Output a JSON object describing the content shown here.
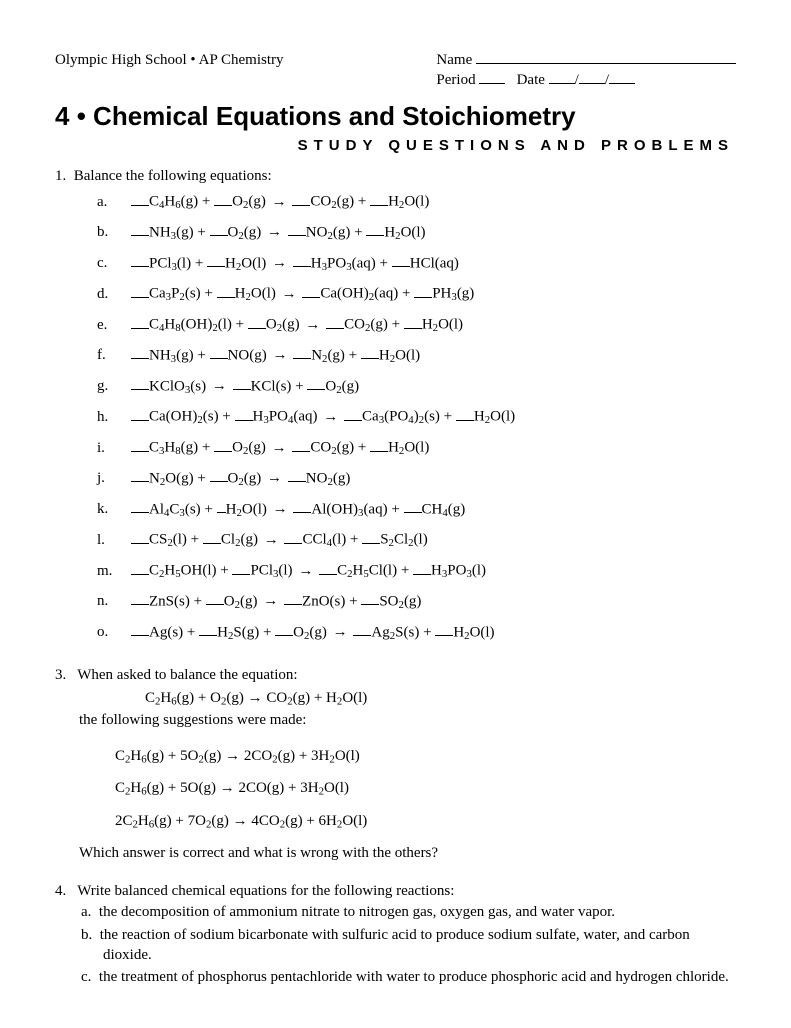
{
  "header": {
    "school": "Olympic High School",
    "bullet": "•",
    "course": "AP Chemistry",
    "name_label": "Name",
    "period_label": "Period",
    "date_label": "Date"
  },
  "title_num": "4",
  "title_bullet": "•",
  "title_text": "Chemical Equations and Stoichiometry",
  "subtitle": "STUDY QUESTIONS AND PROBLEMS",
  "q1": {
    "num": "1.",
    "text": "Balance the following equations:",
    "items": [
      {
        "lbl": "a.",
        "r": [
          [
            "C",
            "4"
          ],
          [
            "H",
            "6"
          ],
          [
            "(g)"
          ]
        ],
        "p": "+",
        "r2": [
          [
            "O",
            "2"
          ],
          [
            "(g)"
          ]
        ],
        "ar": "→",
        "r3": [
          [
            "CO",
            "2"
          ],
          [
            "(g)"
          ]
        ],
        "p2": "+",
        "r4": [
          [
            "H",
            "2"
          ],
          [
            "O(l)"
          ]
        ]
      },
      {
        "lbl": "b.",
        "r": [
          [
            "NH",
            "3"
          ],
          [
            "(g)"
          ]
        ],
        "p": "+",
        "r2": [
          [
            "O",
            "2"
          ],
          [
            "(g)"
          ]
        ],
        "ar": "→",
        "r3": [
          [
            "NO",
            "2"
          ],
          [
            "(g)"
          ]
        ],
        "p2": "+",
        "r4": [
          [
            "H",
            "2"
          ],
          [
            "O(l)"
          ]
        ]
      },
      {
        "lbl": "c.",
        "r": [
          [
            "PCl",
            "3"
          ],
          [
            "(l)"
          ]
        ],
        "p": "+",
        "r2": [
          [
            "H",
            "2"
          ],
          [
            "O(l)"
          ]
        ],
        "ar": "→",
        "r3": [
          [
            "H",
            "3"
          ],
          [
            "PO",
            "3"
          ],
          [
            "(aq)"
          ]
        ],
        "p2": "+",
        "r4": [
          [
            "HCl(aq)"
          ]
        ]
      },
      {
        "lbl": "d.",
        "r": [
          [
            "Ca",
            "3"
          ],
          [
            "P",
            "2"
          ],
          [
            "(s)"
          ]
        ],
        "p": "+",
        "r2": [
          [
            "H",
            "2"
          ],
          [
            "O(l)"
          ]
        ],
        "ar": "→",
        "r3": [
          [
            "Ca(OH)",
            "2"
          ],
          [
            "(aq)"
          ]
        ],
        "p2": "+",
        "r4": [
          [
            "PH",
            "3"
          ],
          [
            "(g)"
          ]
        ]
      },
      {
        "lbl": "e.",
        "r": [
          [
            "C",
            "4"
          ],
          [
            "H",
            "8"
          ],
          [
            "(OH)",
            "2"
          ],
          [
            "(l)"
          ]
        ],
        "p": "+",
        "r2": [
          [
            "O",
            "2"
          ],
          [
            "(g)"
          ]
        ],
        "ar": "→",
        "r3": [
          [
            "CO",
            "2"
          ],
          [
            "(g)"
          ]
        ],
        "p2": "+",
        "r4": [
          [
            "H",
            "2"
          ],
          [
            "O(l)"
          ]
        ]
      },
      {
        "lbl": "f.",
        "r": [
          [
            "NH",
            "3"
          ],
          [
            "(g)"
          ]
        ],
        "p": "+",
        "r2": [
          [
            "NO(g)"
          ]
        ],
        "ar": "→",
        "r3": [
          [
            "N",
            "2"
          ],
          [
            "(g)"
          ]
        ],
        "p2": "+",
        "r4": [
          [
            "H",
            "2"
          ],
          [
            "O(l)"
          ]
        ]
      },
      {
        "lbl": "g.",
        "r": [
          [
            "KClO",
            "3"
          ],
          [
            "(s)"
          ]
        ],
        "ar": "→",
        "r3": [
          [
            "KCl(s)"
          ]
        ],
        "p2": "+",
        "r4": [
          [
            "O",
            "2"
          ],
          [
            "(g)"
          ]
        ]
      },
      {
        "lbl": "h.",
        "r": [
          [
            "Ca(OH)",
            "2"
          ],
          [
            "(s)"
          ]
        ],
        "p": "+",
        "r2": [
          [
            "H",
            "3"
          ],
          [
            "PO",
            "4"
          ],
          [
            "(aq)"
          ]
        ],
        "ar": "→",
        "r3": [
          [
            "Ca",
            "3"
          ],
          [
            "(PO",
            "4"
          ],
          [
            ")",
            "2"
          ],
          [
            "(s)"
          ]
        ],
        "p2": "+",
        "r4": [
          [
            "H",
            "2"
          ],
          [
            "O(l)"
          ]
        ]
      },
      {
        "lbl": "i.",
        "r": [
          [
            "C",
            "3"
          ],
          [
            "H",
            "8"
          ],
          [
            "(g)"
          ]
        ],
        "p": "+",
        "r2": [
          [
            "O",
            "2"
          ],
          [
            "(g)"
          ]
        ],
        "ar": "→",
        "r3": [
          [
            "CO",
            "2"
          ],
          [
            "(g)"
          ]
        ],
        "p2": "+",
        "r4": [
          [
            "H",
            "2"
          ],
          [
            "O(l)"
          ]
        ]
      },
      {
        "lbl": "j.",
        "r": [
          [
            "N",
            "2"
          ],
          [
            "O(g)"
          ]
        ],
        "p": "+",
        "r2": [
          [
            "O",
            "2"
          ],
          [
            "(g)"
          ]
        ],
        "ar": "→",
        "r3": [
          [
            "NO",
            "2"
          ],
          [
            "(g)"
          ]
        ]
      },
      {
        "lbl": "k.",
        "r": [
          [
            "Al",
            "4"
          ],
          [
            "C",
            "3"
          ],
          [
            "(s)"
          ]
        ],
        "p": "+",
        "b2": "1",
        "r2": [
          [
            "H",
            "2"
          ],
          [
            "O(l)"
          ]
        ],
        "ar": "→",
        "r3": [
          [
            "Al(OH)",
            "3"
          ],
          [
            "(aq)"
          ]
        ],
        "p2": "+",
        "r4": [
          [
            "CH",
            "4"
          ],
          [
            "(g)"
          ]
        ]
      },
      {
        "lbl": "l.",
        "r": [
          [
            "CS",
            "2"
          ],
          [
            "(l)"
          ]
        ],
        "p": "+",
        "r2": [
          [
            "Cl",
            "2"
          ],
          [
            "(g)"
          ]
        ],
        "ar": "→",
        "r3": [
          [
            "CCl",
            "4"
          ],
          [
            "(l)"
          ]
        ],
        "p2": "+",
        "r4": [
          [
            "S",
            "2"
          ],
          [
            "Cl",
            "2"
          ],
          [
            "(l)"
          ]
        ]
      },
      {
        "lbl": "m.",
        "r": [
          [
            "C",
            "2"
          ],
          [
            "H",
            "5"
          ],
          [
            "OH(l)"
          ]
        ],
        "p": "+",
        "r2": [
          [
            "PCl",
            "3"
          ],
          [
            "(l)"
          ]
        ],
        "ar": "→",
        "r3": [
          [
            "C",
            "2"
          ],
          [
            "H",
            "5"
          ],
          [
            "Cl(l)"
          ]
        ],
        "p2": "+",
        "r4": [
          [
            "H",
            "3"
          ],
          [
            "PO",
            "3"
          ],
          [
            "(l)"
          ]
        ]
      },
      {
        "lbl": "n.",
        "r": [
          [
            "ZnS(s)"
          ]
        ],
        "p": "+",
        "r2": [
          [
            "O",
            "2"
          ],
          [
            "(g)"
          ]
        ],
        "ar": "→",
        "r3": [
          [
            "ZnO(s)"
          ]
        ],
        "p2": "+",
        "r4": [
          [
            "SO",
            "2"
          ],
          [
            "(g)"
          ]
        ]
      },
      {
        "lbl": "o.",
        "r": [
          [
            "Ag(s)"
          ]
        ],
        "p": "+",
        "r2": [
          [
            "H",
            "2"
          ],
          [
            "S(g)"
          ]
        ],
        "p3": "+",
        "r2b": [
          [
            "O",
            "2"
          ],
          [
            "(g)"
          ]
        ],
        "ar": "→",
        "r3": [
          [
            "Ag",
            "2"
          ],
          [
            "S(s)"
          ]
        ],
        "p2": "+",
        "r4": [
          [
            "H",
            "2"
          ],
          [
            "O(l)"
          ]
        ]
      }
    ]
  },
  "q3": {
    "num": "3.",
    "intro": "When asked to balance the equation:",
    "eq_parts": [
      "C",
      "2",
      "H",
      "6",
      "(g)  +  O",
      "2",
      "(g)  →  CO",
      "2",
      "(g)  +  H",
      "2",
      "O(l)"
    ],
    "mid": "the following suggestions were made:",
    "opts": [
      [
        "C",
        "2",
        "H",
        "6",
        "(g)  +  5O",
        "2",
        "(g)  →  2CO",
        "2",
        "(g)  +  3H",
        "2",
        "O(l)"
      ],
      [
        "C",
        "2",
        "H",
        "6",
        "(g)  +  5O(g)  →  2CO(g)  +  3H",
        "2",
        "O(l)"
      ],
      [
        "2C",
        "2",
        "H",
        "6",
        "(g)  +  7O",
        "2",
        "(g)  →  4CO",
        "2",
        "(g)  +  6H",
        "2",
        "O(l)"
      ]
    ],
    "tail": "Which answer is correct and what is wrong with the others?"
  },
  "q4": {
    "num": "4.",
    "intro": "Write balanced chemical equations for the following reactions:",
    "items": [
      {
        "lbl": "a.",
        "txt": "the decomposition of ammonium nitrate to nitrogen gas, oxygen gas, and water vapor."
      },
      {
        "lbl": "b.",
        "txt": "the reaction of sodium bicarbonate with sulfuric acid to produce sodium sulfate, water, and carbon dioxide."
      },
      {
        "lbl": "c.",
        "txt": "the treatment of phosphorus pentachloride with water to produce phosphoric acid and hydrogen chloride."
      }
    ]
  }
}
